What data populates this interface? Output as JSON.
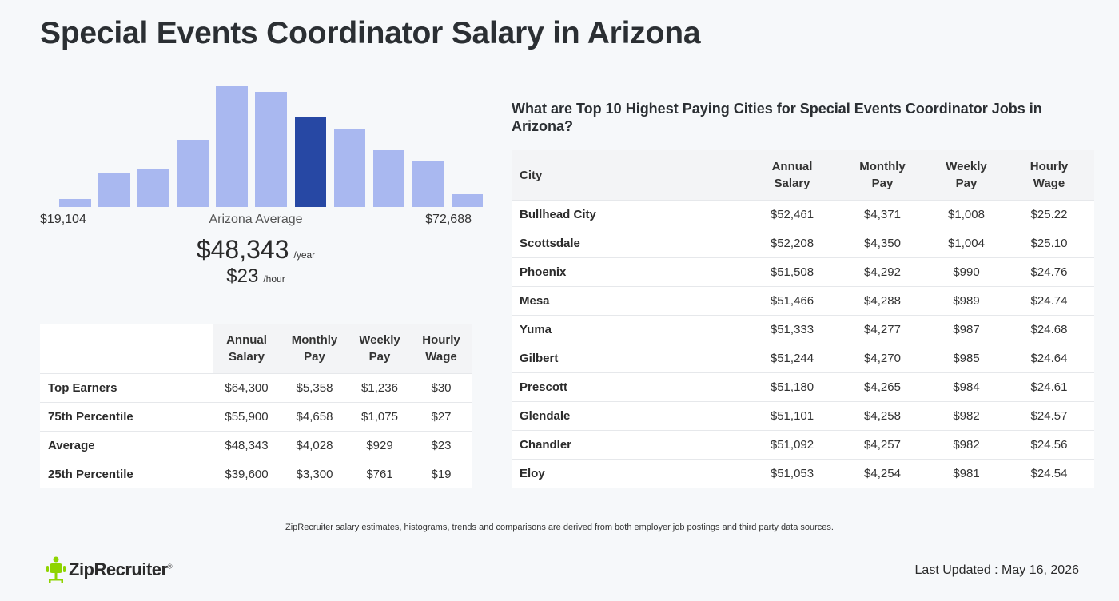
{
  "page": {
    "title": "Special Events Coordinator Salary in Arizona"
  },
  "summary": {
    "min_label": "$19,104",
    "avg_label": "Arizona Average",
    "max_label": "$72,688",
    "annual": "$48,343",
    "annual_unit": "/year",
    "hourly": "$23",
    "hourly_unit": "/hour"
  },
  "chart_data": {
    "type": "bar",
    "categories": [
      "1",
      "2",
      "3",
      "4",
      "5",
      "6",
      "7",
      "8",
      "9",
      "10",
      "11"
    ],
    "values": [
      10,
      42,
      47,
      84,
      152,
      144,
      112,
      97,
      71,
      57,
      16
    ],
    "highlight_index": 6,
    "ylim": [
      0,
      152
    ],
    "colors": {
      "bar": "#a9b8f0",
      "highlight": "#2748a4"
    }
  },
  "percentile_table": {
    "headers": [
      "",
      "Annual Salary",
      "Monthly Pay",
      "Weekly Pay",
      "Hourly Wage"
    ],
    "rows": [
      [
        "Top Earners",
        "$64,300",
        "$5,358",
        "$1,236",
        "$30"
      ],
      [
        "75th Percentile",
        "$55,900",
        "$4,658",
        "$1,075",
        "$27"
      ],
      [
        "Average",
        "$48,343",
        "$4,028",
        "$929",
        "$23"
      ],
      [
        "25th Percentile",
        "$39,600",
        "$3,300",
        "$761",
        "$19"
      ]
    ]
  },
  "city_section": {
    "title": "What are Top 10 Highest Paying Cities for Special Events Coordinator Jobs in Arizona?",
    "headers": [
      "City",
      "Annual Salary",
      "Monthly Pay",
      "Weekly Pay",
      "Hourly Wage"
    ],
    "rows": [
      [
        "Bullhead City",
        "$52,461",
        "$4,371",
        "$1,008",
        "$25.22"
      ],
      [
        "Scottsdale",
        "$52,208",
        "$4,350",
        "$1,004",
        "$25.10"
      ],
      [
        "Phoenix",
        "$51,508",
        "$4,292",
        "$990",
        "$24.76"
      ],
      [
        "Mesa",
        "$51,466",
        "$4,288",
        "$989",
        "$24.74"
      ],
      [
        "Yuma",
        "$51,333",
        "$4,277",
        "$987",
        "$24.68"
      ],
      [
        "Gilbert",
        "$51,244",
        "$4,270",
        "$985",
        "$24.64"
      ],
      [
        "Prescott",
        "$51,180",
        "$4,265",
        "$984",
        "$24.61"
      ],
      [
        "Glendale",
        "$51,101",
        "$4,258",
        "$982",
        "$24.57"
      ],
      [
        "Chandler",
        "$51,092",
        "$4,257",
        "$982",
        "$24.56"
      ],
      [
        "Eloy",
        "$51,053",
        "$4,254",
        "$981",
        "$24.54"
      ]
    ]
  },
  "footer": {
    "note": "ZipRecruiter salary estimates, histograms, trends and comparisons are derived from both employer job postings and third party data sources.",
    "logo_text": "ZipRecruiter",
    "logo_mark": "®",
    "logo_icon": "ziprecruiter-chair-icon",
    "logo_color": "#8fd400",
    "updated": "Last Updated : May 16, 2026"
  }
}
